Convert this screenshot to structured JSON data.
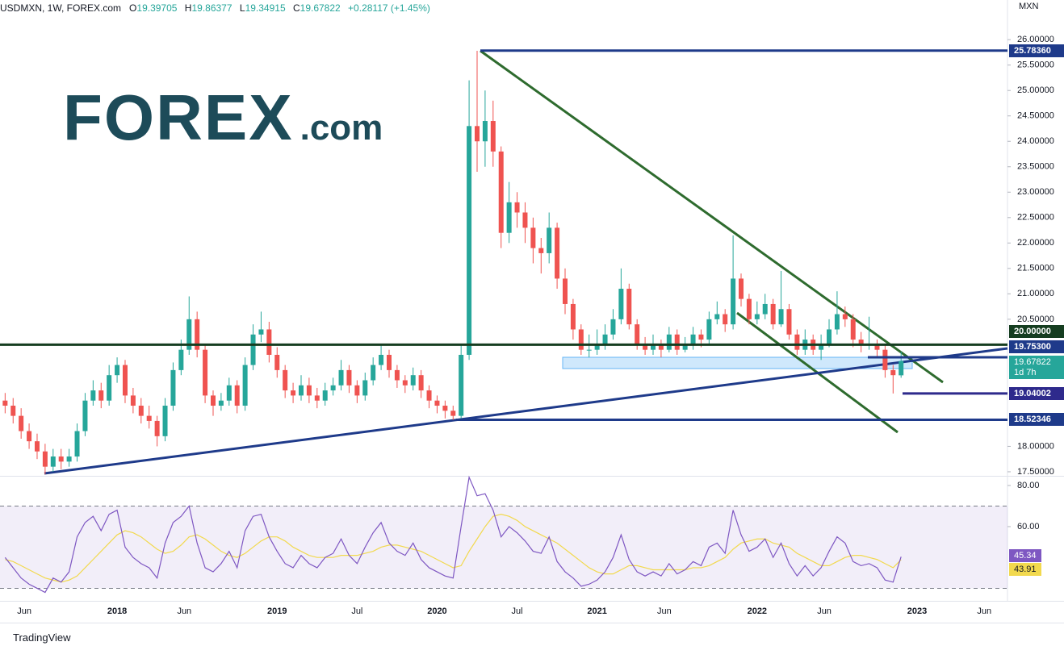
{
  "header": {
    "symbol": "USDMXN, 1W, FOREX.com",
    "ohlc_letters": [
      "O",
      "H",
      "L",
      "C"
    ],
    "change": "+0.28117 (+1.45%)"
  },
  "logo": {
    "name": "FOREX",
    "suffix": ".com"
  },
  "footer": "TradingView",
  "chart_data": [
    {
      "type": "candlestick",
      "unit": "MXN",
      "up_color": "#26a69a",
      "down_color": "#ef5350",
      "x": [
        2017.3,
        2017.35,
        2017.4,
        2017.45,
        2017.5,
        2017.55,
        2017.6,
        2017.65,
        2017.7,
        2017.75,
        2017.8,
        2017.85,
        2017.9,
        2017.95,
        2018.0,
        2018.05,
        2018.1,
        2018.15,
        2018.2,
        2018.25,
        2018.3,
        2018.35,
        2018.4,
        2018.45,
        2018.5,
        2018.55,
        2018.6,
        2018.65,
        2018.7,
        2018.75,
        2018.8,
        2018.85,
        2018.9,
        2018.95,
        2019.0,
        2019.05,
        2019.1,
        2019.15,
        2019.2,
        2019.25,
        2019.3,
        2019.35,
        2019.4,
        2019.45,
        2019.5,
        2019.55,
        2019.6,
        2019.65,
        2019.7,
        2019.75,
        2019.8,
        2019.85,
        2019.9,
        2019.95,
        2020.0,
        2020.05,
        2020.1,
        2020.15,
        2020.2,
        2020.25,
        2020.3,
        2020.35,
        2020.4,
        2020.45,
        2020.5,
        2020.55,
        2020.6,
        2020.65,
        2020.7,
        2020.75,
        2020.8,
        2020.85,
        2020.9,
        2020.95,
        2021.0,
        2021.05,
        2021.1,
        2021.15,
        2021.2,
        2021.25,
        2021.3,
        2021.35,
        2021.4,
        2021.45,
        2021.5,
        2021.55,
        2021.6,
        2021.65,
        2021.7,
        2021.75,
        2021.8,
        2021.85,
        2021.9,
        2021.95,
        2022.0,
        2022.05,
        2022.1,
        2022.15,
        2022.2,
        2022.25,
        2022.3,
        2022.35,
        2022.4,
        2022.45,
        2022.5,
        2022.55,
        2022.6,
        2022.65,
        2022.7,
        2022.75,
        2022.8,
        2022.85,
        2022.9
      ],
      "ohlc": [
        [
          18.9,
          19.05,
          18.65,
          18.8
        ],
        [
          18.8,
          18.95,
          18.45,
          18.6
        ],
        [
          18.6,
          18.75,
          18.15,
          18.3
        ],
        [
          18.3,
          18.45,
          17.95,
          18.1
        ],
        [
          18.1,
          18.25,
          17.75,
          17.9
        ],
        [
          17.9,
          18.05,
          17.45,
          17.6
        ],
        [
          17.6,
          17.95,
          17.5,
          17.8
        ],
        [
          17.8,
          17.95,
          17.55,
          17.7
        ],
        [
          17.7,
          17.95,
          17.6,
          17.8
        ],
        [
          17.8,
          18.45,
          17.7,
          18.3
        ],
        [
          18.3,
          19.05,
          18.2,
          18.9
        ],
        [
          18.9,
          19.3,
          18.8,
          19.1
        ],
        [
          19.1,
          19.25,
          18.75,
          18.9
        ],
        [
          18.9,
          19.6,
          18.8,
          19.4
        ],
        [
          19.4,
          19.75,
          19.25,
          19.6
        ],
        [
          19.6,
          19.7,
          18.85,
          19.0
        ],
        [
          19.0,
          19.15,
          18.65,
          18.8
        ],
        [
          18.8,
          18.95,
          18.45,
          18.6
        ],
        [
          18.6,
          18.8,
          18.35,
          18.5
        ],
        [
          18.5,
          18.6,
          18.0,
          18.2
        ],
        [
          18.2,
          18.95,
          18.1,
          18.8
        ],
        [
          18.8,
          19.65,
          18.7,
          19.5
        ],
        [
          19.5,
          20.1,
          19.4,
          19.9
        ],
        [
          19.9,
          20.95,
          19.8,
          20.5
        ],
        [
          20.5,
          20.65,
          19.75,
          19.9
        ],
        [
          19.9,
          20.0,
          18.85,
          19.0
        ],
        [
          19.0,
          19.1,
          18.6,
          18.8
        ],
        [
          18.8,
          19.05,
          18.7,
          18.9
        ],
        [
          18.9,
          19.35,
          18.8,
          19.2
        ],
        [
          19.2,
          19.3,
          18.65,
          18.8
        ],
        [
          18.8,
          19.75,
          18.7,
          19.6
        ],
        [
          19.6,
          20.4,
          19.5,
          20.2
        ],
        [
          20.2,
          20.65,
          20.05,
          20.3
        ],
        [
          20.3,
          20.45,
          19.65,
          19.8
        ],
        [
          19.8,
          19.95,
          19.35,
          19.5
        ],
        [
          19.5,
          19.6,
          18.95,
          19.1
        ],
        [
          19.1,
          19.25,
          18.85,
          19.0
        ],
        [
          19.0,
          19.4,
          18.9,
          19.2
        ],
        [
          19.2,
          19.35,
          18.85,
          19.0
        ],
        [
          19.0,
          19.15,
          18.75,
          18.9
        ],
        [
          18.9,
          19.25,
          18.8,
          19.1
        ],
        [
          19.1,
          19.35,
          19.0,
          19.2
        ],
        [
          19.2,
          19.7,
          19.1,
          19.5
        ],
        [
          19.5,
          19.6,
          19.05,
          19.2
        ],
        [
          19.2,
          19.3,
          18.85,
          19.0
        ],
        [
          19.0,
          19.45,
          18.9,
          19.3
        ],
        [
          19.3,
          19.75,
          19.2,
          19.6
        ],
        [
          19.6,
          20.0,
          19.5,
          19.8
        ],
        [
          19.8,
          19.9,
          19.35,
          19.5
        ],
        [
          19.5,
          19.6,
          19.15,
          19.3
        ],
        [
          19.3,
          19.4,
          19.05,
          19.2
        ],
        [
          19.2,
          19.55,
          19.1,
          19.4
        ],
        [
          19.4,
          19.5,
          18.95,
          19.1
        ],
        [
          19.1,
          19.2,
          18.75,
          18.9
        ],
        [
          18.9,
          19.0,
          18.65,
          18.8
        ],
        [
          18.8,
          18.9,
          18.55,
          18.7
        ],
        [
          18.7,
          18.8,
          18.52,
          18.6
        ],
        [
          18.6,
          20.0,
          18.55,
          19.8
        ],
        [
          19.8,
          25.2,
          19.7,
          24.3
        ],
        [
          24.3,
          25.78,
          23.4,
          24.0
        ],
        [
          24.0,
          25.0,
          23.5,
          24.4
        ],
        [
          24.4,
          24.8,
          23.5,
          23.8
        ],
        [
          23.8,
          23.9,
          21.9,
          22.2
        ],
        [
          22.2,
          23.2,
          22.0,
          22.8
        ],
        [
          22.8,
          23.0,
          22.3,
          22.6
        ],
        [
          22.6,
          22.8,
          22.0,
          22.3
        ],
        [
          22.3,
          22.5,
          21.6,
          21.9
        ],
        [
          21.9,
          22.1,
          21.4,
          21.8
        ],
        [
          21.8,
          22.6,
          21.6,
          22.3
        ],
        [
          22.3,
          22.4,
          21.1,
          21.3
        ],
        [
          21.3,
          21.5,
          20.6,
          20.8
        ],
        [
          20.8,
          20.9,
          20.1,
          20.3
        ],
        [
          20.3,
          20.4,
          19.8,
          19.9
        ],
        [
          19.9,
          20.2,
          19.75,
          19.9
        ],
        [
          19.9,
          20.3,
          19.8,
          20.0
        ],
        [
          20.0,
          20.4,
          19.9,
          20.2
        ],
        [
          20.2,
          20.7,
          20.1,
          20.5
        ],
        [
          20.5,
          21.5,
          20.4,
          21.1
        ],
        [
          21.1,
          21.2,
          20.3,
          20.4
        ],
        [
          20.4,
          20.5,
          19.9,
          20.0
        ],
        [
          20.0,
          20.15,
          19.8,
          19.9
        ],
        [
          19.9,
          20.2,
          19.8,
          20.0
        ],
        [
          20.0,
          20.1,
          19.75,
          19.9
        ],
        [
          19.9,
          20.35,
          19.85,
          20.2
        ],
        [
          20.2,
          20.3,
          19.8,
          19.9
        ],
        [
          19.9,
          20.15,
          19.85,
          20.0
        ],
        [
          20.0,
          20.35,
          19.9,
          20.2
        ],
        [
          20.2,
          20.3,
          19.95,
          20.1
        ],
        [
          20.1,
          20.65,
          20.0,
          20.5
        ],
        [
          20.5,
          20.85,
          20.4,
          20.6
        ],
        [
          20.6,
          20.7,
          20.25,
          20.4
        ],
        [
          20.4,
          22.15,
          20.3,
          21.3
        ],
        [
          21.3,
          21.4,
          20.75,
          20.9
        ],
        [
          20.9,
          21.0,
          20.4,
          20.5
        ],
        [
          20.5,
          20.85,
          20.4,
          20.6
        ],
        [
          20.6,
          21.0,
          20.5,
          20.8
        ],
        [
          20.8,
          20.9,
          20.3,
          20.4
        ],
        [
          20.4,
          21.45,
          20.35,
          20.7
        ],
        [
          20.7,
          20.8,
          20.1,
          20.2
        ],
        [
          20.2,
          20.3,
          19.8,
          19.9
        ],
        [
          19.9,
          20.3,
          19.8,
          20.1
        ],
        [
          20.1,
          20.2,
          19.8,
          19.9
        ],
        [
          19.9,
          20.2,
          19.7,
          20.0
        ],
        [
          20.0,
          20.5,
          19.95,
          20.3
        ],
        [
          20.3,
          21.05,
          20.2,
          20.6
        ],
        [
          20.6,
          20.75,
          20.35,
          20.5
        ],
        [
          20.5,
          20.6,
          19.95,
          20.1
        ],
        [
          20.1,
          20.25,
          19.85,
          20.0
        ],
        [
          20.0,
          20.55,
          19.9,
          20.0
        ],
        [
          20.0,
          20.1,
          19.75,
          19.9
        ],
        [
          19.9,
          20.0,
          19.35,
          19.5
        ],
        [
          19.5,
          19.6,
          19.04,
          19.4
        ],
        [
          19.39705,
          19.86377,
          19.34915,
          19.67822
        ]
      ],
      "xlim": [
        2017.268,
        2023.565
      ],
      "xticks": [
        {
          "value": 2017.42,
          "label": "Jun"
        },
        2018,
        {
          "value": 2018.42,
          "label": "Jun"
        },
        2019,
        {
          "value": 2019.5,
          "label": "Jul"
        },
        2020,
        {
          "value": 2020.5,
          "label": "Jul"
        },
        2021,
        {
          "value": 2021.42,
          "label": "Jun"
        },
        2022,
        {
          "value": 2022.42,
          "label": "Jun"
        },
        2023,
        {
          "value": 2023.42,
          "label": "Jun"
        }
      ],
      "ylim": [
        17.42,
        26.78
      ],
      "yticks": [
        {
          "value": 26,
          "label": "26.00000"
        },
        {
          "value": 25.5,
          "label": "25.50000"
        },
        {
          "value": 25,
          "label": "25.00000"
        },
        {
          "value": 24.5,
          "label": "24.50000"
        },
        {
          "value": 24,
          "label": "24.00000"
        },
        {
          "value": 23.5,
          "label": "23.50000"
        },
        {
          "value": 23,
          "label": "23.00000"
        },
        {
          "value": 22.5,
          "label": "22.50000"
        },
        {
          "value": 22,
          "label": "22.00000"
        },
        {
          "value": 21.5,
          "label": "21.50000"
        },
        {
          "value": 21,
          "label": "21.00000"
        },
        {
          "value": 20.5,
          "label": "20.50000"
        },
        {
          "value": 18,
          "label": "18.00000"
        },
        {
          "value": 17.5,
          "label": "17.50000"
        }
      ],
      "levels": [
        {
          "value": 25.7836,
          "label": "25.78360",
          "color": "#1e3a8a"
        },
        {
          "value": 20,
          "label": "20.00000",
          "color": "#153d20"
        },
        {
          "value": 19.753,
          "label": "19.75300",
          "color": "#1e3a8a"
        },
        {
          "value": 19.04002,
          "label": "19.04002",
          "color": "#2e2a8c"
        },
        {
          "value": 18.52346,
          "label": "18.52346",
          "color": "#1e3a8a"
        }
      ],
      "last_price_color": "#26a69a",
      "countdown": "1d 7h"
    },
    {
      "type": "line",
      "ylim": [
        23.9,
        84.3
      ],
      "band": [
        30,
        70
      ],
      "yticks": [
        {
          "value": 80,
          "label": "80.00"
        },
        {
          "value": 60,
          "label": "60.00"
        }
      ],
      "series": [
        {
          "color": "#7e57c2",
          "values": [
            45,
            40,
            35,
            32,
            30,
            28,
            35,
            33,
            38,
            55,
            62,
            65,
            58,
            66,
            68,
            50,
            45,
            42,
            40,
            35,
            52,
            62,
            65,
            70,
            52,
            40,
            38,
            42,
            48,
            40,
            58,
            65,
            66,
            55,
            48,
            42,
            40,
            46,
            42,
            40,
            45,
            47,
            54,
            46,
            42,
            50,
            57,
            62,
            52,
            48,
            46,
            52,
            44,
            40,
            38,
            36,
            35,
            60,
            84,
            75,
            76,
            68,
            55,
            60,
            57,
            53,
            48,
            47,
            55,
            43,
            38,
            35,
            31,
            32,
            34,
            38,
            45,
            56,
            44,
            38,
            36,
            38,
            36,
            42,
            37,
            39,
            43,
            41,
            50,
            52,
            47,
            68,
            56,
            48,
            50,
            54,
            45,
            52,
            42,
            36,
            41,
            36,
            40,
            48,
            55,
            52,
            43,
            41,
            42,
            40,
            34,
            33,
            45.34
          ]
        },
        {
          "color": "#f2d94e",
          "values": [
            44,
            43,
            41,
            39,
            37,
            35,
            34,
            33,
            34,
            36,
            40,
            44,
            48,
            52,
            56,
            58,
            57,
            55,
            52,
            49,
            47,
            48,
            51,
            55,
            56,
            54,
            51,
            48,
            46,
            45,
            47,
            50,
            53,
            55,
            55,
            53,
            50,
            48,
            46,
            45,
            45,
            45,
            46,
            46,
            46,
            47,
            48,
            50,
            51,
            51,
            50,
            49,
            48,
            46,
            44,
            42,
            40,
            41,
            48,
            54,
            60,
            65,
            66,
            65,
            63,
            60,
            58,
            56,
            54,
            52,
            49,
            46,
            43,
            40,
            38,
            37,
            37,
            39,
            41,
            41,
            40,
            39,
            39,
            39,
            39,
            39,
            40,
            40,
            41,
            43,
            45,
            49,
            52,
            53,
            54,
            54,
            52,
            51,
            50,
            47,
            45,
            43,
            41,
            41,
            43,
            45,
            46,
            46,
            45,
            44,
            42,
            40,
            43.91
          ]
        }
      ]
    }
  ]
}
